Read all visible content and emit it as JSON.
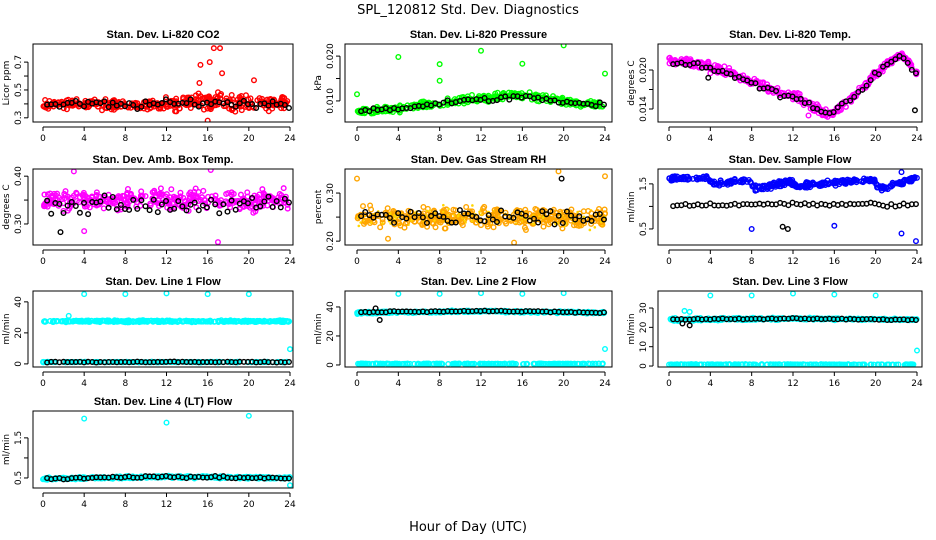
{
  "chart_data": {
    "type": "scatter",
    "title": "SPL_120812  Std. Dev. Diagnostics",
    "xlabel": "Hour of Day (UTC)",
    "xlim": [
      0,
      24
    ],
    "xticks": [
      0,
      4,
      8,
      12,
      16,
      20,
      24
    ],
    "panels": [
      {
        "title": "Stan. Dev. Li-820 CO2",
        "ylabel": "Licor ppm",
        "ylim": [
          0.27,
          0.83
        ],
        "yticks": [
          0.3,
          0.4,
          0.5,
          0.6,
          0.7
        ],
        "ytick_labels": [
          "0.3",
          "",
          "0.5",
          "",
          "0.7"
        ],
        "color": "#FF0000",
        "band": {
          "x": [
            0,
            4,
            8,
            12,
            16,
            20,
            24
          ],
          "y": [
            0.4,
            0.4,
            0.39,
            0.4,
            0.42,
            0.41,
            0.4
          ],
          "spread": [
            0.05,
            0.05,
            0.05,
            0.06,
            0.09,
            0.08,
            0.07
          ]
        },
        "black": {
          "y": [
            0.39,
            0.4,
            0.39,
            0.4,
            0.41,
            0.4,
            0.4
          ],
          "spread": 0.04
        },
        "outliers": [
          [
            15.2,
            0.55
          ],
          [
            15.3,
            0.68
          ],
          [
            16.2,
            0.7
          ],
          [
            16.6,
            0.8
          ],
          [
            17.2,
            0.8
          ],
          [
            17.4,
            0.62
          ],
          [
            16,
            0.28
          ],
          [
            20.5,
            0.57
          ]
        ],
        "black_outliers": []
      },
      {
        "title": "Stan. Dev. Li-820 Pressure",
        "ylabel": "kPa",
        "ylim": [
          0.0053,
          0.0227
        ],
        "yticks": [
          0.01,
          0.015,
          0.02
        ],
        "ytick_labels": [
          "0.010",
          "",
          "0.020"
        ],
        "color": "#00FF00",
        "band": {
          "x": [
            0,
            4,
            8,
            12,
            16,
            20,
            24
          ],
          "y": [
            0.0075,
            0.0082,
            0.0095,
            0.0105,
            0.0114,
            0.0098,
            0.009
          ],
          "spread": [
            0.0011,
            0.0011,
            0.0012,
            0.0012,
            0.0012,
            0.0011,
            0.001
          ]
        },
        "black": {
          "y": [
            0.0078,
            0.0083,
            0.0095,
            0.0102,
            0.011,
            0.0098,
            0.0093
          ],
          "spread": 0.0008
        },
        "outliers": [
          [
            0,
            0.0115
          ],
          [
            4,
            0.0198
          ],
          [
            8,
            0.0182
          ],
          [
            8,
            0.0145
          ],
          [
            12,
            0.0212
          ],
          [
            16,
            0.0183
          ],
          [
            20,
            0.0224
          ],
          [
            24,
            0.0161
          ]
        ],
        "black_outliers": []
      },
      {
        "title": "Stan. Dev. Li-820 Temp.",
        "ylabel": "degrees C",
        "ylim": [
          0.012,
          0.024
        ],
        "yticks": [
          0.014,
          0.017,
          0.02
        ],
        "ytick_labels": [
          "0.014",
          "",
          "0.020"
        ],
        "color": "#FF00FF",
        "band": {
          "x": [
            0,
            3,
            6,
            9,
            12,
            15.5,
            18,
            20,
            22.5,
            24
          ],
          "y": [
            0.0215,
            0.021,
            0.0195,
            0.0175,
            0.016,
            0.013,
            0.016,
            0.0195,
            0.0225,
            0.0195
          ],
          "spread": [
            0.0008,
            0.0009,
            0.001,
            0.001,
            0.001,
            0.0009,
            0.0009,
            0.0009,
            0.0007,
            0.0008
          ]
        },
        "black": {
          "y": [
            0.0212,
            0.0208,
            0.0193,
            0.0172,
            0.0158,
            0.0132,
            0.0158,
            0.0195,
            0.0222,
            0.0192
          ],
          "spread": 0.0007
        },
        "outliers": [
          [
            4,
            0.0195
          ],
          [
            13.5,
            0.013
          ]
        ],
        "black_outliers": [
          [
            23.8,
            0.0138
          ],
          [
            3.8,
            0.0188
          ]
        ]
      },
      {
        "title": "Stan. Dev. Amb. Box Temp.",
        "ylabel": "degrees C",
        "ylim": [
          0.256,
          0.415
        ],
        "yticks": [
          0.3,
          0.35,
          0.4
        ],
        "ytick_labels": [
          "0.30",
          "",
          "0.40"
        ],
        "color": "#FF00FF",
        "band": {
          "x": [
            0,
            12,
            24
          ],
          "y": [
            0.35,
            0.35,
            0.35
          ],
          "spread": [
            0.03,
            0.03,
            0.03
          ]
        },
        "black": {
          "y": [
            0.34,
            0.34,
            0.34
          ],
          "spread": 0.025
        },
        "outliers": [
          [
            17,
            0.262
          ],
          [
            3,
            0.41
          ],
          [
            16.3,
            0.413
          ],
          [
            4,
            0.285
          ]
        ],
        "black_outliers": [
          [
            1.7,
            0.283
          ]
        ]
      },
      {
        "title": "Stan. Dev. Gas Stream RH",
        "ylabel": "percent",
        "ylim": [
          0.192,
          0.35
        ],
        "yticks": [
          0.2,
          0.25,
          0.3
        ],
        "ytick_labels": [
          "0.20",
          "",
          "0.30"
        ],
        "color": "#FFA500",
        "band": {
          "x": [
            0,
            12,
            24
          ],
          "y": [
            0.25,
            0.25,
            0.248
          ],
          "spread": [
            0.028,
            0.028,
            0.028
          ]
        },
        "black": {
          "y": [
            0.25,
            0.25,
            0.25
          ],
          "spread": 0.025
        },
        "outliers": [
          [
            0,
            0.33
          ],
          [
            15.2,
            0.197
          ],
          [
            19.5,
            0.345
          ],
          [
            24,
            0.335
          ],
          [
            3,
            0.205
          ]
        ],
        "black_outliers": [
          [
            19.8,
            0.33
          ]
        ]
      },
      {
        "title": "Stan. Dev. Sample Flow",
        "ylabel": "ml/min",
        "ylim": [
          0.144,
          1.83
        ],
        "yticks": [
          0.5,
          1.0,
          1.5
        ],
        "ytick_labels": [
          "0.5",
          "",
          "1.5"
        ],
        "color": "#0000FF",
        "band": {
          "x": [
            0,
            3.8,
            4.2,
            7.8,
            8.3,
            11.8,
            12.3,
            19.8,
            20.3,
            24
          ],
          "y": [
            1.62,
            1.63,
            1.5,
            1.58,
            1.4,
            1.55,
            1.45,
            1.6,
            1.4,
            1.62
          ],
          "spread": [
            0.07,
            0.07,
            0.08,
            0.07,
            0.1,
            0.07,
            0.1,
            0.07,
            0.1,
            0.07
          ]
        },
        "black": {
          "y": [
            1.02,
            1.05,
            1.03,
            1.05,
            1.06,
            1.05,
            1.04,
            1.05,
            1.04,
            1.03
          ],
          "spread": 0.06
        },
        "outliers": [
          [
            8,
            0.5
          ],
          [
            16,
            0.57
          ],
          [
            22.5,
            0.4
          ],
          [
            23.9,
            0.23
          ],
          [
            22.5,
            1.76
          ]
        ],
        "black_outliers": [
          [
            11,
            0.55
          ],
          [
            11.5,
            0.5
          ]
        ]
      },
      {
        "title": "Stan. Dev. Line 1 Flow",
        "ylabel": "ml/min",
        "ylim": [
          -2,
          47
        ],
        "yticks": [
          0,
          20,
          40
        ],
        "ytick_labels": [
          "0",
          "20",
          "40"
        ],
        "color": "#00FFFF",
        "band": {
          "x": [
            0,
            12,
            24
          ],
          "y": [
            27.5,
            27.5,
            27.5
          ],
          "spread": [
            0.8,
            0.8,
            0.8
          ]
        },
        "low": {
          "y": 1.2,
          "spread": 0.5
        },
        "black": {
          "y": [
            1.2,
            1.2,
            1.2
          ],
          "spread": 0.5
        },
        "outliers": [
          [
            4,
            45
          ],
          [
            8,
            45
          ],
          [
            12,
            45.5
          ],
          [
            16,
            45
          ],
          [
            20,
            45
          ],
          [
            24,
            9.5
          ],
          [
            2.5,
            31
          ]
        ],
        "black_outliers": []
      },
      {
        "title": "Stan. Dev. Line 2 Flow",
        "ylabel": "ml/min",
        "ylim": [
          -1.4,
          51
        ],
        "yticks": [
          0,
          20,
          40
        ],
        "ytick_labels": [
          "0",
          "20",
          "40"
        ],
        "color": "#00FFFF",
        "band": {
          "x": [
            0,
            12,
            24
          ],
          "y": [
            36,
            37,
            36
          ],
          "spread": [
            1.2,
            0.9,
            0.9
          ]
        },
        "low": {
          "y": 0.8,
          "spread": 0.5
        },
        "black": {
          "y": [
            36.5,
            37.3,
            36
          ],
          "spread": 0.6
        },
        "outliers": [
          [
            4,
            49
          ],
          [
            8,
            49
          ],
          [
            12,
            49.5
          ],
          [
            16,
            49
          ],
          [
            20,
            49.5
          ],
          [
            24,
            11
          ]
        ],
        "black_outliers": [
          [
            2.2,
            31
          ],
          [
            1.8,
            39
          ]
        ]
      },
      {
        "title": "Stan. Dev. Line 3 Flow",
        "ylabel": "ml/min",
        "ylim": [
          -0.5,
          38.8
        ],
        "yticks": [
          0,
          10,
          20,
          30
        ],
        "ytick_labels": [
          "0",
          "10",
          "20",
          "30"
        ],
        "color": "#00FFFF",
        "band": {
          "x": [
            0,
            12,
            24
          ],
          "y": [
            24,
            24.5,
            24
          ],
          "spread": [
            1.2,
            0.7,
            0.7
          ]
        },
        "low": {
          "y": 0.8,
          "spread": 0.4
        },
        "black": {
          "y": [
            24,
            24.5,
            24
          ],
          "spread": 0.5
        },
        "outliers": [
          [
            4,
            36.5
          ],
          [
            8,
            36.5
          ],
          [
            12,
            37.5
          ],
          [
            16,
            37
          ],
          [
            20,
            36.5
          ],
          [
            24,
            8
          ],
          [
            2,
            28
          ],
          [
            1.5,
            28.5
          ]
        ],
        "black_outliers": [
          [
            2,
            21
          ],
          [
            1.3,
            22
          ]
        ]
      },
      {
        "title": "Stan. Dev. Line 4 (LT) Flow",
        "ylabel": "ml/min",
        "ylim": [
          0.25,
          2.17
        ],
        "yticks": [
          0.5,
          1.0,
          1.5
        ],
        "ytick_labels": [
          "0.5",
          "",
          "1.5"
        ],
        "color": "#00FFFF",
        "band": {
          "x": [
            0,
            12,
            24
          ],
          "y": [
            0.48,
            0.53,
            0.5
          ],
          "spread": [
            0.04,
            0.04,
            0.04
          ]
        },
        "black": {
          "y": [
            0.48,
            0.53,
            0.5
          ],
          "spread": 0.04
        },
        "outliers": [
          [
            4,
            1.98
          ],
          [
            12,
            1.88
          ],
          [
            20,
            2.05
          ],
          [
            24,
            0.32
          ]
        ],
        "black_outliers": []
      }
    ]
  }
}
